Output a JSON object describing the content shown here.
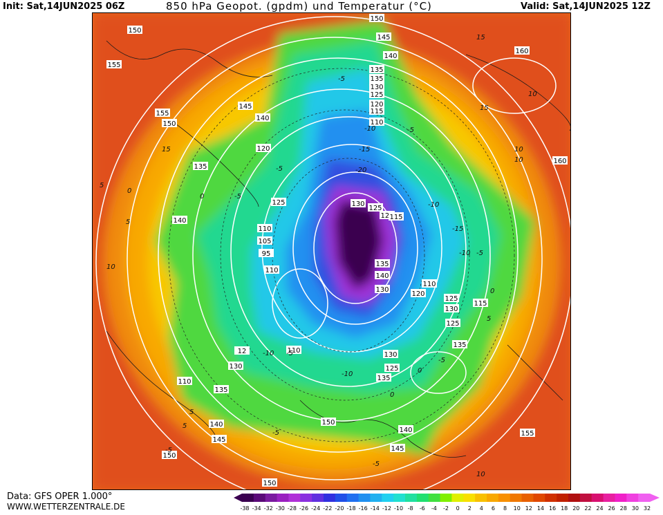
{
  "header": {
    "init": "Init: Sat,14JUN2025 06Z",
    "title": "850 hPa Geopot. (gpdm) und Temperatur (°C)",
    "valid": "Valid: Sat,14JUN2025 12Z"
  },
  "footer": {
    "source": "Data: GFS OPER 1.000°",
    "website": "WWW.WETTERZENTRALE.DE"
  },
  "colorbar": {
    "ticks": [
      "-38",
      "-34",
      "-32",
      "-30",
      "-28",
      "-26",
      "-24",
      "-22",
      "-20",
      "-18",
      "-16",
      "-14",
      "-12",
      "-10",
      "-8",
      "-6",
      "-4",
      "-2",
      "0",
      "2",
      "4",
      "6",
      "8",
      "10",
      "12",
      "14",
      "16",
      "18",
      "20",
      "22",
      "24",
      "26",
      "28",
      "30",
      "32"
    ],
    "colors": [
      "#3a0050",
      "#5a0a78",
      "#7a1aa0",
      "#9a20c0",
      "#b030d8",
      "#8a30e0",
      "#6030e0",
      "#3030e0",
      "#2050e8",
      "#2070f0",
      "#2090f0",
      "#20b0f0",
      "#20d0f0",
      "#20e0d0",
      "#20e0a0",
      "#20e070",
      "#40e040",
      "#80f000",
      "#e0f000",
      "#f8e000",
      "#f8c000",
      "#f8a800",
      "#f89000",
      "#f07800",
      "#e86000",
      "#e04800",
      "#d03000",
      "#c02000",
      "#b01010",
      "#c01040",
      "#d81070",
      "#e820a0",
      "#f020c8",
      "#f040e0",
      "#f060f0"
    ]
  },
  "geopotential_labels": [
    "150",
    "150",
    "145",
    "140",
    "155",
    "155",
    "145",
    "140",
    "150",
    "135",
    "135",
    "130",
    "125",
    "120",
    "115",
    "110",
    "120",
    "135",
    "125",
    "140",
    "110",
    "105",
    "95",
    "110",
    "130",
    "125",
    "120",
    "115",
    "135",
    "140",
    "130",
    "120",
    "125",
    "130",
    "110",
    "115",
    "125",
    "135",
    "130",
    "125",
    "135",
    "110",
    "130",
    "110",
    "135",
    "12",
    "140",
    "145",
    "150",
    "150",
    "150",
    "140",
    "145",
    "155",
    "160",
    "160"
  ],
  "temperature_labels": [
    "-5",
    "-10",
    "-15",
    "-20",
    "-5",
    "0",
    "-5",
    "0",
    "5",
    "10",
    "15",
    "-5",
    "-10",
    "-15",
    "-10",
    "-5",
    "0",
    "5",
    "10",
    "15",
    "10",
    "-5",
    "-10",
    "-5",
    "0",
    "5",
    "-5",
    "-10",
    "0",
    "5",
    "10",
    "-5",
    "15",
    "10",
    "5",
    "-5"
  ]
}
